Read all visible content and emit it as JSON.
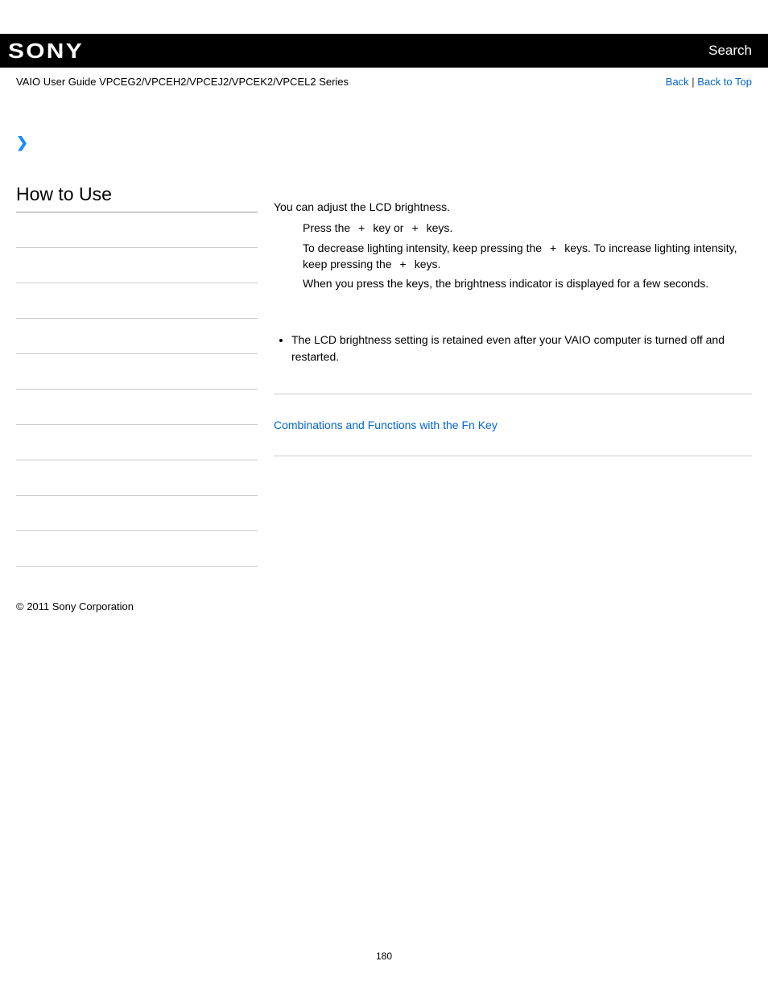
{
  "header": {
    "logo_text": "SONY",
    "search_label": "Search"
  },
  "subheader": {
    "guide_title": "VAIO User Guide VPCEG2/VPCEH2/VPCEJ2/VPCEK2/VPCEL2 Series",
    "back_label": "Back",
    "back_to_top_label": "Back to Top",
    "separator": " | "
  },
  "sidebar": {
    "heading": "How to Use",
    "row_count": 10
  },
  "content": {
    "intro": "You can adjust the LCD brightness.",
    "line1_a": "Press the",
    "plus1": "+",
    "line1_b": "key or",
    "plus2": "+",
    "line1_c": "keys.",
    "line2_a": "To decrease lighting intensity, keep pressing the",
    "plus3": "+",
    "line2_b": "keys. To increase lighting intensity, keep pressing the",
    "plus4": "+",
    "line2_c": "keys.",
    "line3": "When you press the keys, the brightness indicator is displayed for a few seconds.",
    "bullet1": "The LCD brightness setting is retained even after your VAIO computer is turned off and restarted.",
    "related_link": "Combinations and Functions with the Fn Key"
  },
  "footer": {
    "copyright": "© 2011 Sony Corporation",
    "page_number": "180"
  },
  "colors": {
    "link": "#0066cc",
    "topbar_bg": "#000000",
    "chevron": "#1a8cff"
  }
}
